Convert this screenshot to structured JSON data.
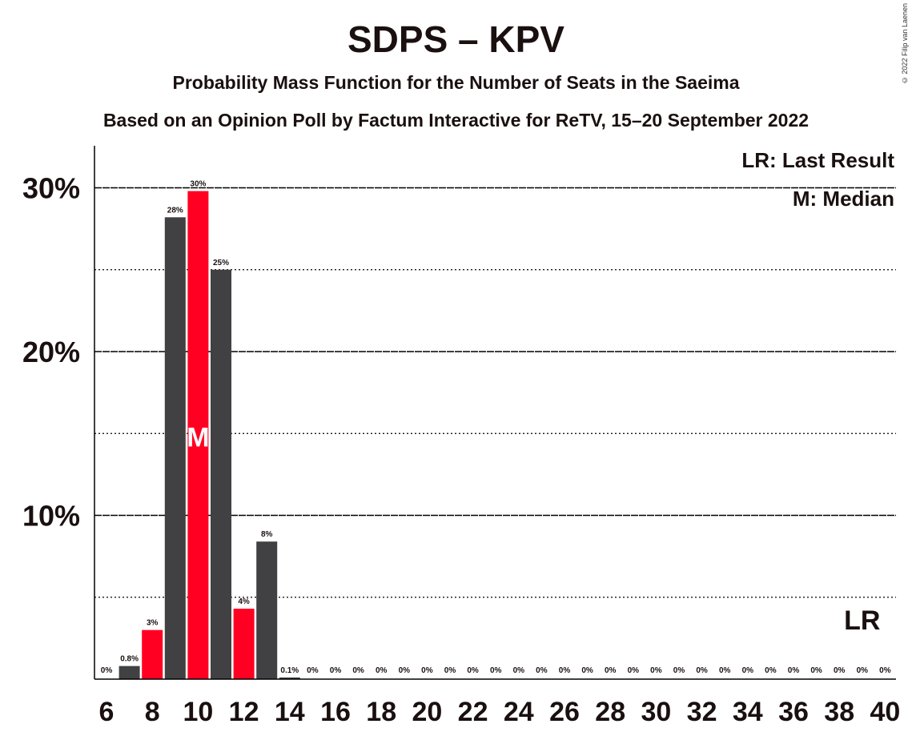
{
  "title": "SDPS – KPV",
  "subtitle": "Probability Mass Function for the Number of Seats in the Saeima",
  "subtitle2": "Based on an Opinion Poll by Factum Interactive for ReTV, 15–20 September 2022",
  "copyright": "© 2022 Filip van Laenen",
  "legend": {
    "last_result": "LR: Last Result",
    "median": "M: Median"
  },
  "colors": {
    "bar_default": "#414042",
    "bar_highlight": "#ff0022",
    "grid": "#000000",
    "text": "#1a1010"
  },
  "chart_data": {
    "type": "bar",
    "x": [
      6,
      7,
      8,
      9,
      10,
      11,
      12,
      13,
      14,
      15,
      16,
      17,
      18,
      19,
      20,
      21,
      22,
      23,
      24,
      25,
      26,
      27,
      28,
      29,
      30,
      31,
      32,
      33,
      34,
      35,
      36,
      37,
      38,
      39,
      40
    ],
    "values": [
      0,
      0.8,
      3,
      28.2,
      29.8,
      25,
      4.3,
      8.4,
      0.1,
      0,
      0,
      0,
      0,
      0,
      0,
      0,
      0,
      0,
      0,
      0,
      0,
      0,
      0,
      0,
      0,
      0,
      0,
      0,
      0,
      0,
      0,
      0,
      0,
      0,
      0
    ],
    "labels": [
      "0%",
      "0.8%",
      "3%",
      "28%",
      "30%",
      "25%",
      "4%",
      "8%",
      "0.1%",
      "0%",
      "0%",
      "0%",
      "0%",
      "0%",
      "0%",
      "0%",
      "0%",
      "0%",
      "0%",
      "0%",
      "0%",
      "0%",
      "0%",
      "0%",
      "0%",
      "0%",
      "0%",
      "0%",
      "0%",
      "0%",
      "0%",
      "0%",
      "0%",
      "0%",
      "0%"
    ],
    "highlight": [
      8,
      10,
      12
    ],
    "median_seat": 10,
    "median_marker": "M",
    "last_result_seat": 39,
    "last_result_marker": "LR",
    "x_tick_labels": [
      "6",
      "8",
      "10",
      "12",
      "14",
      "16",
      "18",
      "20",
      "22",
      "24",
      "26",
      "28",
      "30",
      "32",
      "34",
      "36",
      "38",
      "40"
    ],
    "y_ticks_major": [
      10,
      20,
      30
    ],
    "y_tick_labels": [
      "10%",
      "20%",
      "30%"
    ],
    "y_ticks_minor": [
      5,
      15,
      25
    ],
    "ylim": [
      0,
      32
    ],
    "grid": true,
    "legend_position": "top-right"
  }
}
